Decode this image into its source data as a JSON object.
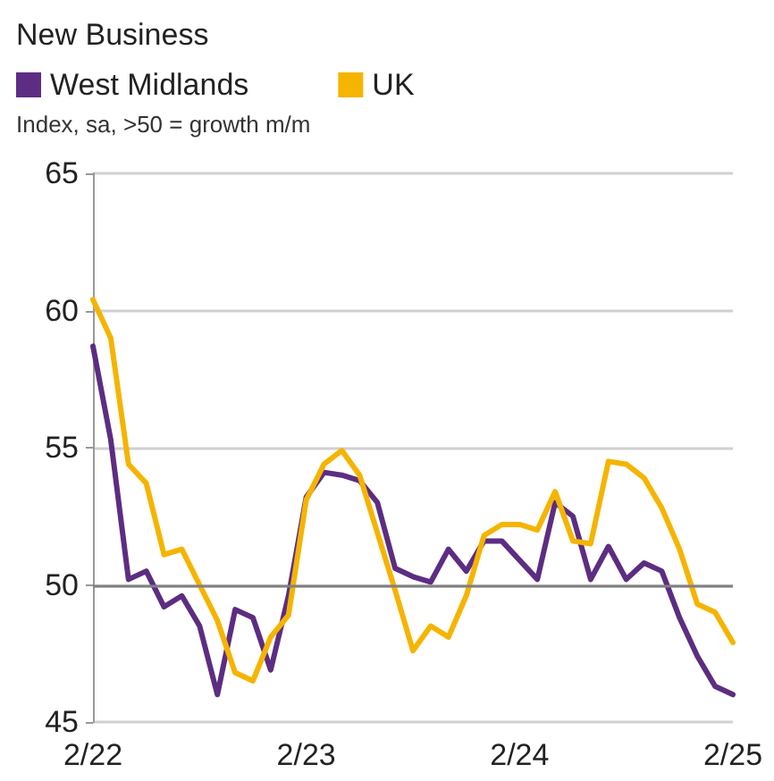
{
  "chart_data": {
    "type": "line",
    "title": "New Business",
    "subtitle": "Index, sa, >50 = growth m/m",
    "categories": [
      "2/22",
      null,
      null,
      null,
      null,
      null,
      null,
      null,
      null,
      null,
      null,
      null,
      "2/23",
      null,
      null,
      null,
      null,
      null,
      null,
      null,
      null,
      null,
      null,
      null,
      "2/24",
      null,
      null,
      null,
      null,
      null,
      null,
      null,
      null,
      null,
      null,
      null,
      "2/25"
    ],
    "series": [
      {
        "name": "West Midlands",
        "color": "#5c2d82",
        "values": [
          58.7,
          55.3,
          50.2,
          50.5,
          49.2,
          49.6,
          48.5,
          46.0,
          49.1,
          48.8,
          46.9,
          49.6,
          53.2,
          54.1,
          54.0,
          53.8,
          53.0,
          50.6,
          50.3,
          50.1,
          51.3,
          50.5,
          51.6,
          51.6,
          50.9,
          50.2,
          53.0,
          52.5,
          50.2,
          51.4,
          50.2,
          50.8,
          50.5,
          48.8,
          47.4,
          46.3,
          46.0
        ]
      },
      {
        "name": "UK",
        "color": "#f5b400",
        "values": [
          60.4,
          59.0,
          54.4,
          53.7,
          51.1,
          51.3,
          50.0,
          48.7,
          46.8,
          46.5,
          48.1,
          48.9,
          53.1,
          54.4,
          54.9,
          54.0,
          51.9,
          49.8,
          47.6,
          48.5,
          48.1,
          49.6,
          51.8,
          52.2,
          52.2,
          52.0,
          53.4,
          51.6,
          51.5,
          54.5,
          54.4,
          53.9,
          52.8,
          51.3,
          49.3,
          49.0,
          47.9
        ]
      }
    ],
    "ylim": [
      45,
      65
    ],
    "yticks": [
      45,
      50,
      55,
      60,
      65
    ],
    "grid": "y",
    "legend": "top left",
    "marker": "none",
    "line_style": "solid",
    "ref_lines": [
      {
        "axis": "y",
        "value": 50,
        "color": "#808080"
      }
    ]
  }
}
